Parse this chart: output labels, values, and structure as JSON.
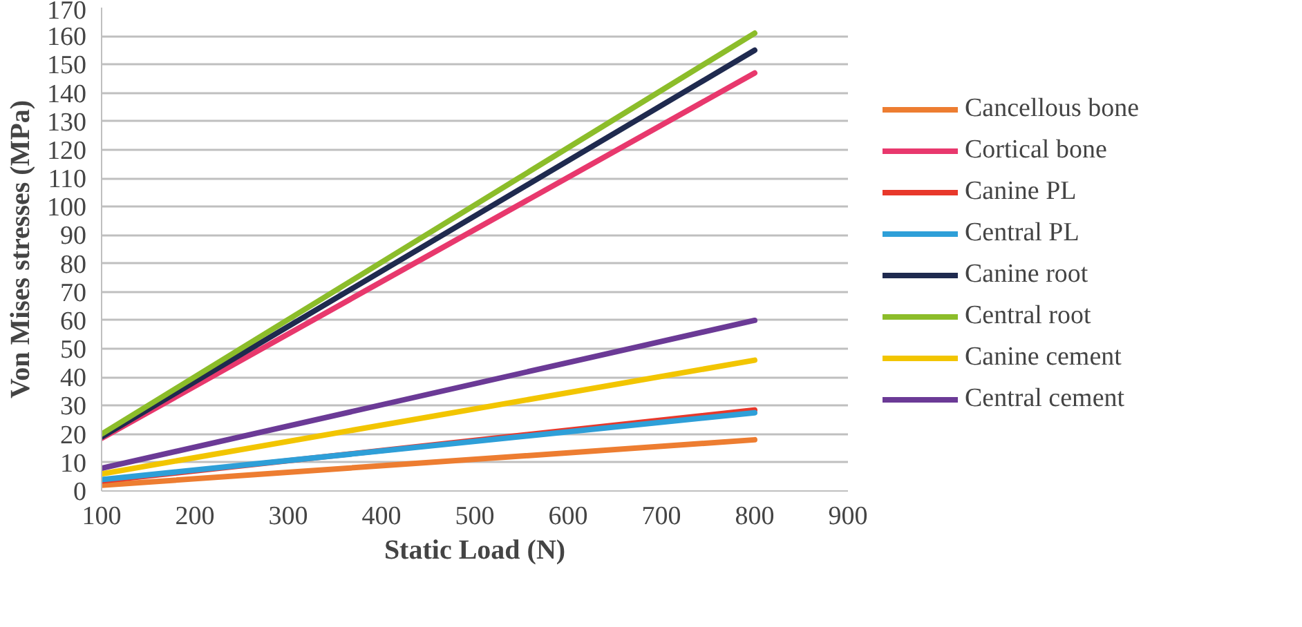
{
  "chart_data": {
    "type": "line",
    "xlabel": "Static Load (N)",
    "ylabel": "Von Mises stresses (MPa)",
    "x": [
      100,
      800
    ],
    "series": [
      {
        "name": "Cancellous bone",
        "color": "#ed7d31",
        "values": [
          2,
          18
        ]
      },
      {
        "name": "Cortical bone",
        "color": "#e8386d",
        "values": [
          18.5,
          147
        ]
      },
      {
        "name": "Canine PL",
        "color": "#e8382b",
        "values": [
          3.5,
          28.5
        ]
      },
      {
        "name": "Central PL",
        "color": "#2e9fd8",
        "values": [
          4,
          27.5
        ]
      },
      {
        "name": "Canine root",
        "color": "#1f2a4f",
        "values": [
          19,
          155
        ]
      },
      {
        "name": "Central root",
        "color": "#8cbd2a",
        "values": [
          20,
          161
        ]
      },
      {
        "name": "Canine cement",
        "color": "#f2c500",
        "values": [
          6,
          46
        ]
      },
      {
        "name": "Central cement",
        "color": "#6b3a96",
        "values": [
          8,
          60
        ]
      }
    ],
    "xlim": [
      100,
      900
    ],
    "ylim": [
      0,
      170
    ],
    "xticks": [
      100,
      200,
      300,
      400,
      500,
      600,
      700,
      800,
      900
    ],
    "yticks": [
      0,
      10,
      20,
      30,
      40,
      50,
      60,
      70,
      80,
      90,
      100,
      110,
      120,
      130,
      140,
      150,
      160,
      170
    ],
    "grid": "y",
    "legend": "right",
    "marker": "none",
    "line_style": "solid"
  }
}
